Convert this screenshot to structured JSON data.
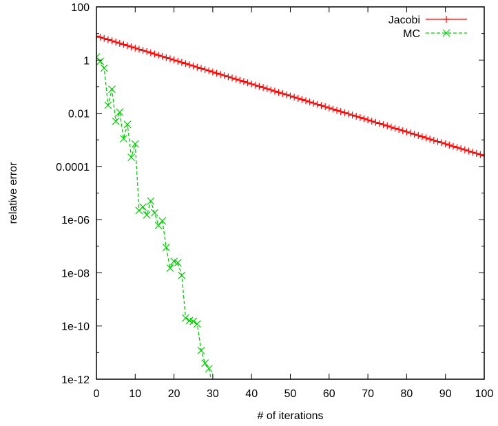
{
  "chart_data": {
    "type": "line",
    "xlabel": "# of iterations",
    "ylabel": "relative error",
    "xlim": [
      0,
      100
    ],
    "ylim": [
      1e-12,
      100
    ],
    "yscale": "log",
    "xticks": [
      {
        "value": 0,
        "label": "0"
      },
      {
        "value": 10,
        "label": "10"
      },
      {
        "value": 20,
        "label": "20"
      },
      {
        "value": 30,
        "label": "30"
      },
      {
        "value": 40,
        "label": "40"
      },
      {
        "value": 50,
        "label": "50"
      },
      {
        "value": 60,
        "label": "60"
      },
      {
        "value": 70,
        "label": "70"
      },
      {
        "value": 80,
        "label": "80"
      },
      {
        "value": 90,
        "label": "90"
      },
      {
        "value": 100,
        "label": "100"
      }
    ],
    "yticks": [
      {
        "value": 100,
        "label": "100"
      },
      {
        "value": 1,
        "label": "1"
      },
      {
        "value": 0.01,
        "label": "0.01"
      },
      {
        "value": 0.0001,
        "label": "0.0001"
      },
      {
        "value": 1e-06,
        "label": "1e-06"
      },
      {
        "value": 1e-08,
        "label": "1e-08"
      },
      {
        "value": 1e-10,
        "label": "1e-10"
      },
      {
        "value": 1e-12,
        "label": "1e-12"
      }
    ],
    "grid": false,
    "legend_position": "top-right",
    "series": [
      {
        "name": "Jacobi",
        "color": "#ff0000",
        "line_style": "solid",
        "marker": "plus",
        "x_start": 0,
        "x_end": 100,
        "x_step": 1,
        "y_start": 8,
        "y_end": 0.00025
      },
      {
        "name": "MC",
        "color": "#00cc00",
        "line_style": "dashed",
        "marker": "cross",
        "x": [
          0,
          1,
          2,
          3,
          4,
          5,
          6,
          7,
          8,
          9,
          10,
          11,
          12,
          13,
          14,
          15,
          16,
          17,
          18,
          19,
          20,
          21,
          22,
          23,
          24,
          25,
          26,
          27,
          28,
          29,
          30
        ],
        "y": [
          1.3,
          0.9,
          0.5,
          0.02,
          0.08,
          0.005,
          0.011,
          0.0011,
          0.0038,
          0.00022,
          0.0007,
          2.2e-06,
          3e-06,
          1.5e-06,
          5e-06,
          1.8e-06,
          6e-07,
          9e-07,
          9e-08,
          1.5e-08,
          2.7e-08,
          2.4e-08,
          8e-09,
          2e-10,
          1.6e-10,
          1.5e-10,
          1.2e-10,
          1.2e-11,
          4e-12,
          2.5e-12,
          5e-13
        ]
      }
    ]
  }
}
